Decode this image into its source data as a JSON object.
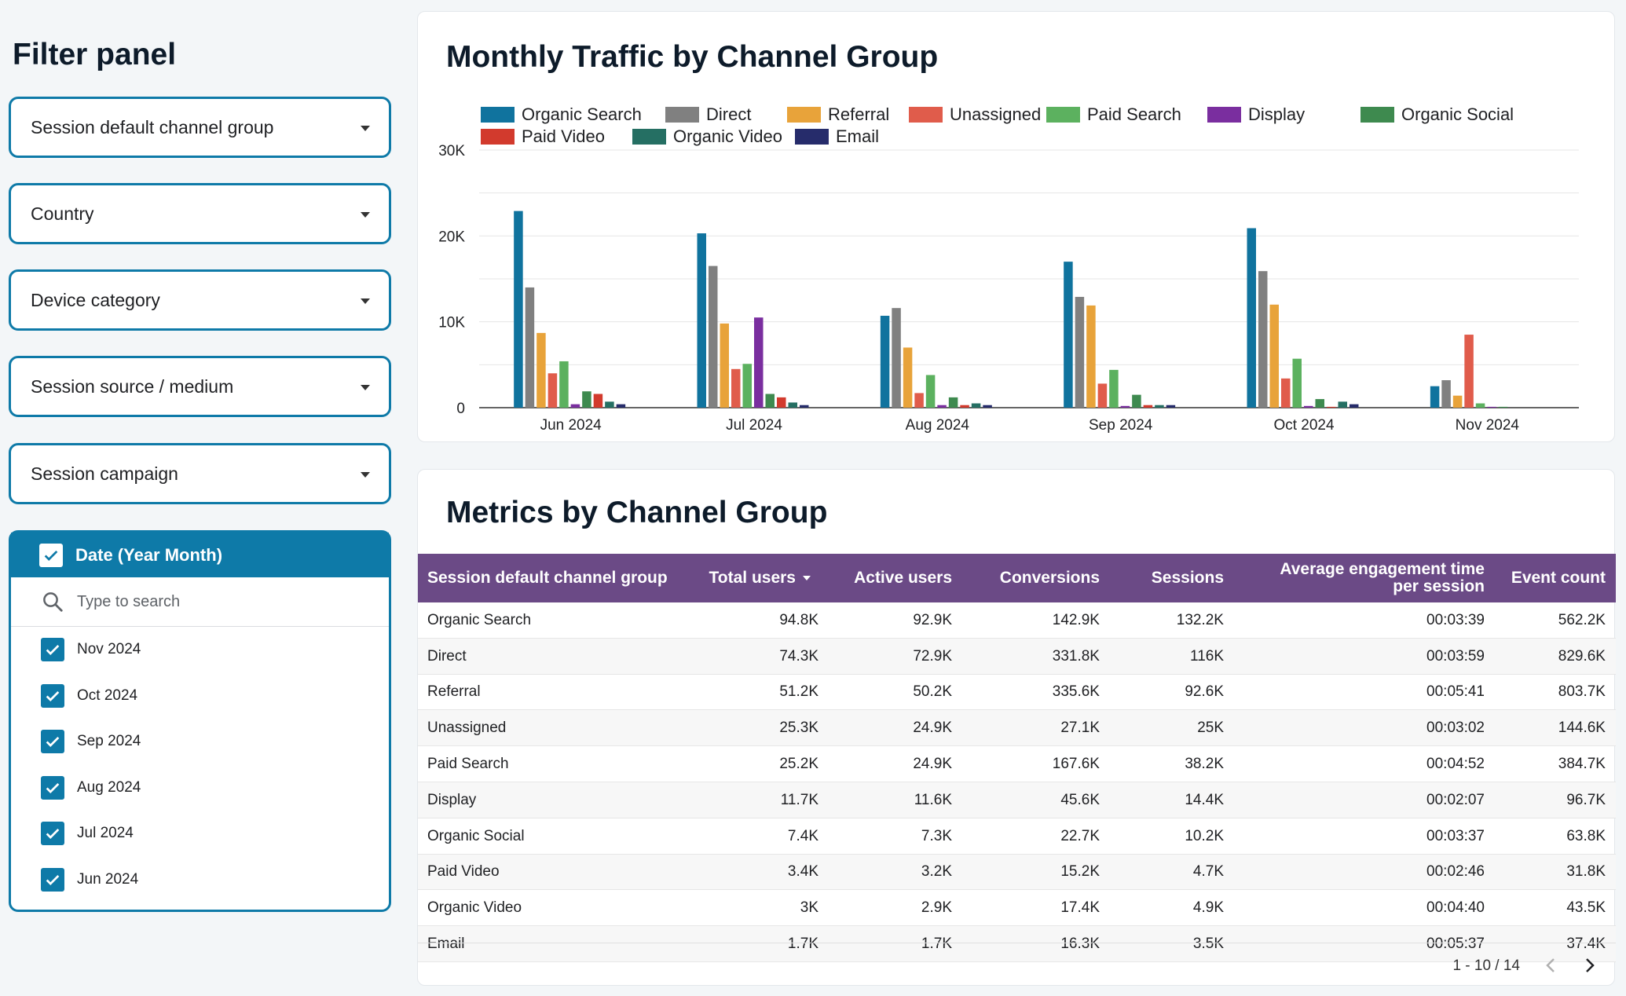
{
  "filter_panel": {
    "title": "Filter panel",
    "dropdowns": [
      {
        "label": "Session default channel group"
      },
      {
        "label": "Country"
      },
      {
        "label": "Device category"
      },
      {
        "label": "Session source / medium"
      },
      {
        "label": "Session campaign"
      }
    ],
    "date_filter": {
      "label": "Date (Year Month)",
      "search_placeholder": "Type to search",
      "options": [
        {
          "label": "Nov 2024",
          "checked": true
        },
        {
          "label": "Oct 2024",
          "checked": true
        },
        {
          "label": "Sep 2024",
          "checked": true
        },
        {
          "label": "Aug 2024",
          "checked": true
        },
        {
          "label": "Jul 2024",
          "checked": true
        },
        {
          "label": "Jun 2024",
          "checked": true
        }
      ]
    }
  },
  "chart_data": {
    "type": "bar",
    "title": "Monthly Traffic by Channel Group",
    "xlabel": "",
    "ylabel": "",
    "ylim": [
      0,
      30000
    ],
    "yticks": [
      0,
      10000,
      20000,
      30000
    ],
    "ytick_labels": [
      "0",
      "10K",
      "20K",
      "30K"
    ],
    "grid": true,
    "legend_position": "top",
    "categories": [
      "Jun 2024",
      "Jul 2024",
      "Aug 2024",
      "Sep 2024",
      "Oct 2024",
      "Nov 2024"
    ],
    "series": [
      {
        "name": "Organic Search",
        "color": "#10739e",
        "values": [
          22900,
          20300,
          10700,
          17000,
          20900,
          2500
        ]
      },
      {
        "name": "Direct",
        "color": "#808080",
        "values": [
          14000,
          16500,
          11600,
          12900,
          15900,
          3200
        ]
      },
      {
        "name": "Referral",
        "color": "#e8a33a",
        "values": [
          8700,
          9800,
          7000,
          11900,
          12000,
          1400
        ]
      },
      {
        "name": "Unassigned",
        "color": "#e05c4b",
        "values": [
          4000,
          4500,
          1700,
          2800,
          3400,
          8500
        ]
      },
      {
        "name": "Paid Search",
        "color": "#5cb15f",
        "values": [
          5400,
          5100,
          3800,
          4400,
          5700,
          500
        ]
      },
      {
        "name": "Display",
        "color": "#7a2e9f",
        "values": [
          400,
          10500,
          300,
          200,
          200,
          100
        ]
      },
      {
        "name": "Organic Social",
        "color": "#3e8a4f",
        "values": [
          1900,
          1600,
          1200,
          1500,
          1000,
          100
        ]
      },
      {
        "name": "Paid Video",
        "color": "#d23a2d",
        "values": [
          1600,
          1200,
          300,
          300,
          100,
          0
        ]
      },
      {
        "name": "Organic Video",
        "color": "#256f63",
        "values": [
          700,
          600,
          500,
          300,
          700,
          0
        ]
      },
      {
        "name": "Email",
        "color": "#262c6b",
        "values": [
          400,
          300,
          300,
          300,
          400,
          0
        ]
      }
    ]
  },
  "metrics_table": {
    "title": "Metrics by Channel Group",
    "columns": [
      "Session default channel group",
      "Total users",
      "Active users",
      "Conversions",
      "Sessions",
      "Average engagement time per session",
      "Event count"
    ],
    "sorted_column_icon": "sort-desc-icon",
    "rows": [
      [
        "Organic Search",
        "94.8K",
        "92.9K",
        "142.9K",
        "132.2K",
        "00:03:39",
        "562.2K"
      ],
      [
        "Direct",
        "74.3K",
        "72.9K",
        "331.8K",
        "116K",
        "00:03:59",
        "829.6K"
      ],
      [
        "Referral",
        "51.2K",
        "50.2K",
        "335.6K",
        "92.6K",
        "00:05:41",
        "803.7K"
      ],
      [
        "Unassigned",
        "25.3K",
        "24.9K",
        "27.1K",
        "25K",
        "00:03:02",
        "144.6K"
      ],
      [
        "Paid Search",
        "25.2K",
        "24.9K",
        "167.6K",
        "38.2K",
        "00:04:52",
        "384.7K"
      ],
      [
        "Display",
        "11.7K",
        "11.6K",
        "45.6K",
        "14.4K",
        "00:02:07",
        "96.7K"
      ],
      [
        "Organic Social",
        "7.4K",
        "7.3K",
        "22.7K",
        "10.2K",
        "00:03:37",
        "63.8K"
      ],
      [
        "Paid Video",
        "3.4K",
        "3.2K",
        "15.2K",
        "4.7K",
        "00:02:46",
        "31.8K"
      ],
      [
        "Organic Video",
        "3K",
        "2.9K",
        "17.4K",
        "4.9K",
        "00:04:40",
        "43.5K"
      ],
      [
        "Email",
        "1.7K",
        "1.7K",
        "16.3K",
        "3.5K",
        "00:05:37",
        "37.4K"
      ]
    ],
    "pagination": "1 - 10 / 14"
  }
}
